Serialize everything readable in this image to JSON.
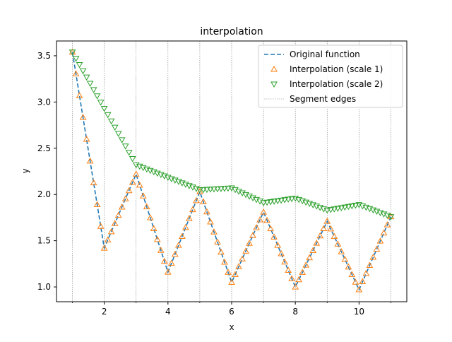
{
  "chart_data": {
    "type": "line",
    "title": "interpolation",
    "xlabel": "x",
    "ylabel": "y",
    "xlim": [
      0.5,
      11.5
    ],
    "ylim": [
      0.84,
      3.66
    ],
    "xticks": [
      2,
      4,
      6,
      8,
      10
    ],
    "yticks": [
      1.0,
      1.5,
      2.0,
      2.5,
      3.0,
      3.5
    ],
    "xtick_labels": [
      "2",
      "4",
      "6",
      "8",
      "10"
    ],
    "ytick_labels": [
      "1.0",
      "1.5",
      "2.0",
      "2.5",
      "3.0",
      "3.5"
    ],
    "legend_position": "top-right",
    "segment_edges": [
      1,
      2,
      3,
      4,
      5,
      6,
      7,
      8,
      9,
      10,
      11
    ],
    "series": [
      {
        "name": "Original function",
        "style": "dashed-line",
        "color": "#1f77b4",
        "x": [
          1,
          2,
          3,
          4,
          5,
          6,
          7,
          8,
          9,
          10,
          11
        ],
        "y": [
          3.54,
          1.42,
          2.22,
          1.16,
          2.03,
          1.05,
          1.81,
          1.0,
          1.71,
          0.97,
          1.76
        ]
      },
      {
        "name": "Interpolation (scale 1)",
        "style": "triangle-up-markers",
        "color": "#ff7f0e",
        "segments_from": "Original function",
        "points_per_segment": 9
      },
      {
        "name": "Interpolation (scale 2)",
        "style": "triangle-down-markers",
        "color": "#2ca02c",
        "x": [
          1,
          3,
          5,
          6,
          7,
          8,
          9,
          10,
          11
        ],
        "y": [
          3.54,
          2.32,
          2.05,
          2.07,
          1.91,
          1.96,
          1.83,
          1.89,
          1.76
        ],
        "points_per_segment": 9
      },
      {
        "name": "Segment edges",
        "style": "dotted-vertical-lines",
        "color": "#808080"
      }
    ]
  }
}
